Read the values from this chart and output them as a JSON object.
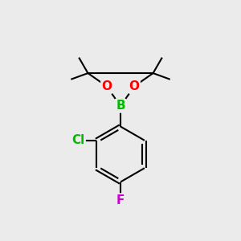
{
  "bg_color": "#ebebeb",
  "bond_color": "#000000",
  "bond_width": 1.5,
  "atom_colors": {
    "B": "#00bb00",
    "O": "#ff0000",
    "Cl": "#00bb00",
    "F": "#cc00cc",
    "C": "#000000"
  },
  "font_size_atom": 11,
  "canvas_xlim": [
    0,
    10
  ],
  "canvas_ylim": [
    0,
    10
  ]
}
